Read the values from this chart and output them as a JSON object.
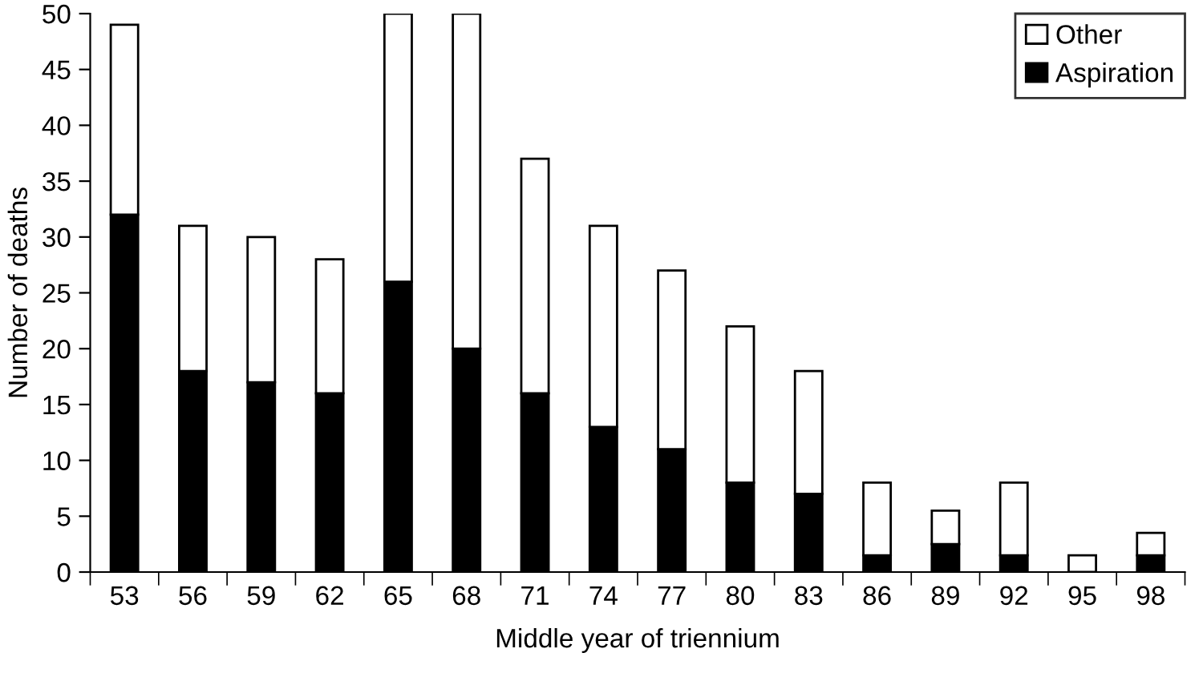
{
  "chart_data": {
    "type": "bar",
    "stacked": true,
    "xlabel": "Middle year of triennium",
    "ylabel": "Number of deaths",
    "categories": [
      "53",
      "56",
      "59",
      "62",
      "65",
      "68",
      "71",
      "74",
      "77",
      "80",
      "83",
      "86",
      "89",
      "92",
      "95",
      "98"
    ],
    "series": [
      {
        "name": "Aspiration",
        "color": "#000000",
        "values": [
          32,
          18,
          17,
          16,
          26,
          20,
          16,
          13,
          11,
          8,
          7,
          1.5,
          2.5,
          1.5,
          0,
          1.5
        ]
      },
      {
        "name": "Other",
        "color": "#ffffff",
        "values": [
          17,
          13,
          13,
          12,
          24,
          30,
          21,
          18,
          16,
          14,
          11,
          6.5,
          3,
          6.5,
          1.5,
          2
        ]
      }
    ],
    "ylim": [
      0,
      50
    ],
    "yticks": [
      0,
      5,
      10,
      15,
      20,
      25,
      30,
      35,
      40,
      45,
      50
    ],
    "grid": false,
    "legend": "top right"
  }
}
